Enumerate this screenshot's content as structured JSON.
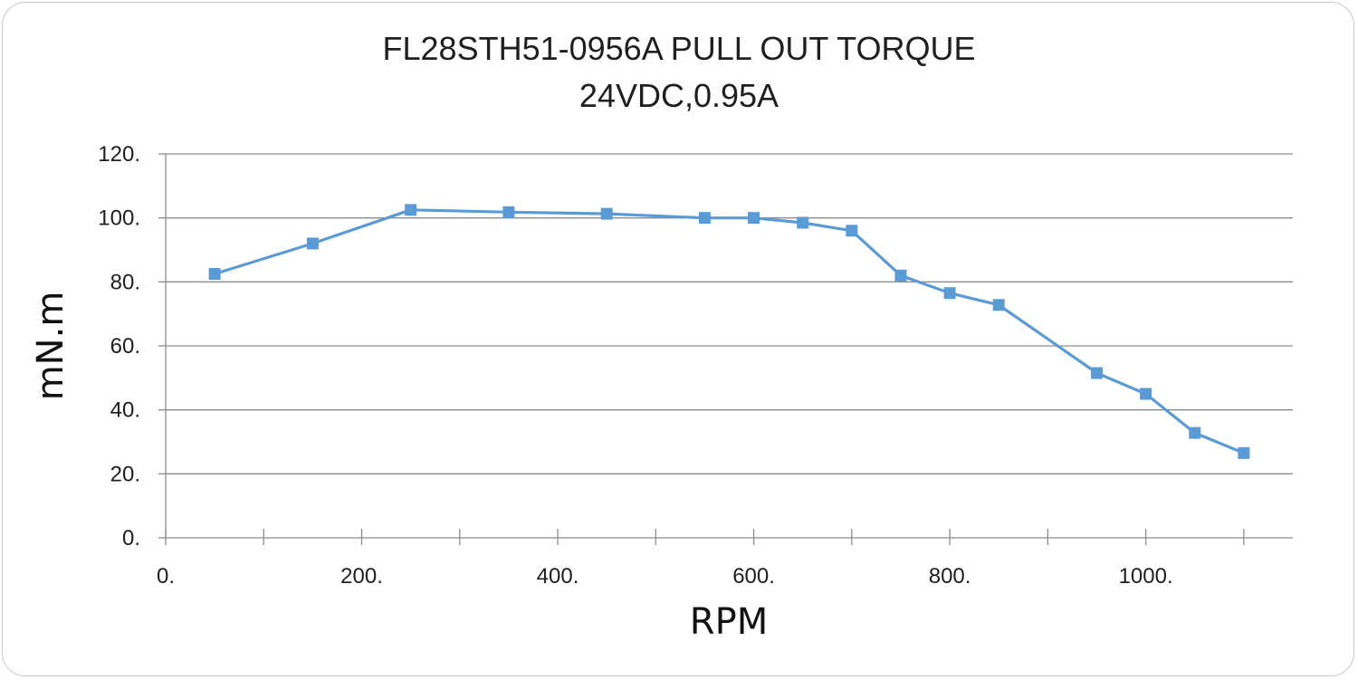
{
  "chart_data": {
    "type": "line",
    "title": "FL28STH51-0956A  PULL OUT TORQUE",
    "subtitle": "24VDC,0.95A",
    "xlabel": "RPM",
    "ylabel": "mN.m",
    "xlim": [
      0,
      1150
    ],
    "ylim": [
      0,
      120
    ],
    "x_ticks": [
      {
        "value": 0,
        "label": "0."
      },
      {
        "value": 200,
        "label": "200."
      },
      {
        "value": 400,
        "label": "400."
      },
      {
        "value": 600,
        "label": "600."
      },
      {
        "value": 800,
        "label": "800."
      },
      {
        "value": 1000,
        "label": "1000."
      }
    ],
    "x_minor_ticks": [
      100,
      300,
      500,
      700,
      900,
      1100
    ],
    "y_ticks": [
      {
        "value": 0,
        "label": "0."
      },
      {
        "value": 20,
        "label": "20."
      },
      {
        "value": 40,
        "label": "40."
      },
      {
        "value": 60,
        "label": "60."
      },
      {
        "value": 80,
        "label": "80."
      },
      {
        "value": 100,
        "label": "100."
      },
      {
        "value": 120,
        "label": "120."
      }
    ],
    "grid": true,
    "legend": "none",
    "series": [
      {
        "color": "#5b9bd5",
        "marker": "square",
        "points": [
          {
            "x": 50,
            "y": 82.5
          },
          {
            "x": 150,
            "y": 92
          },
          {
            "x": 250,
            "y": 102.5
          },
          {
            "x": 350,
            "y": 101.8
          },
          {
            "x": 450,
            "y": 101.3
          },
          {
            "x": 550,
            "y": 100
          },
          {
            "x": 600,
            "y": 100
          },
          {
            "x": 650,
            "y": 98.5
          },
          {
            "x": 700,
            "y": 96
          },
          {
            "x": 750,
            "y": 82
          },
          {
            "x": 800,
            "y": 76.5
          },
          {
            "x": 850,
            "y": 72.8
          },
          {
            "x": 950,
            "y": 51.5
          },
          {
            "x": 1000,
            "y": 45
          },
          {
            "x": 1050,
            "y": 32.8
          },
          {
            "x": 1100,
            "y": 26.5
          }
        ]
      }
    ]
  }
}
